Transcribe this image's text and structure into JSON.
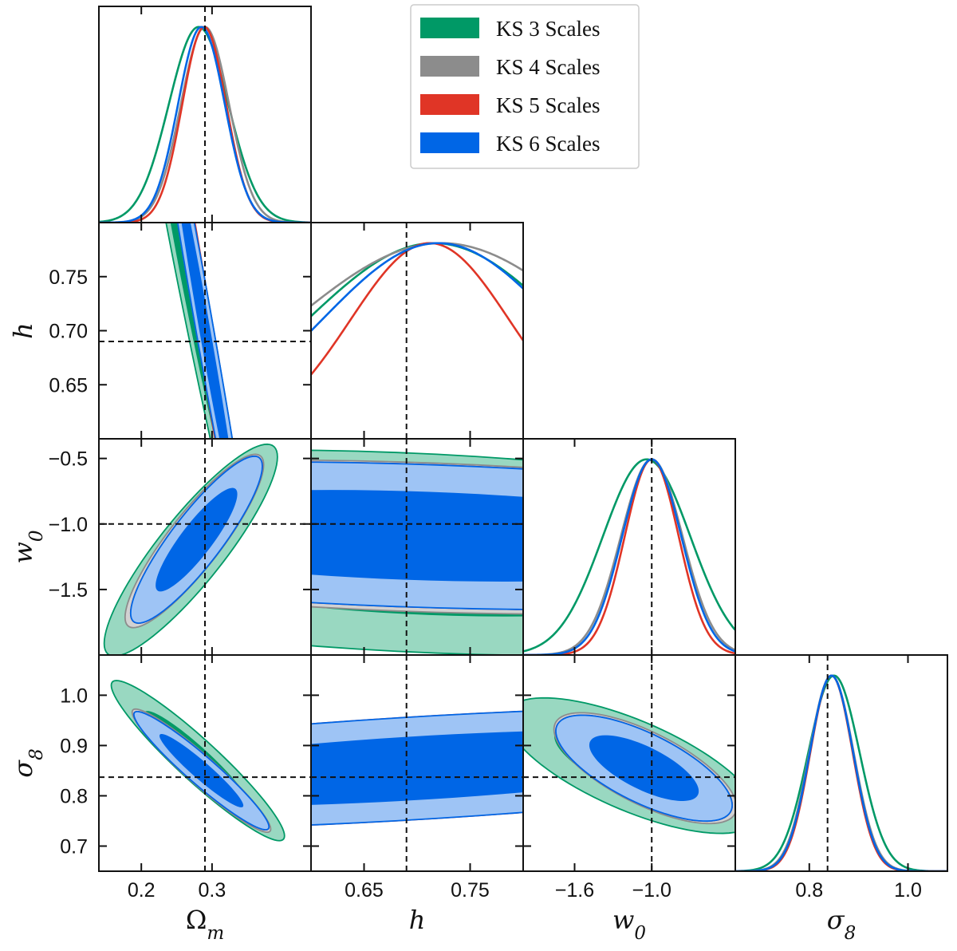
{
  "chart_data": {
    "type": "corner",
    "parameters": [
      {
        "key": "Om",
        "label": "Ω",
        "subscript": "m",
        "fiducial": 0.29,
        "range": [
          0.14,
          0.44
        ],
        "ticks": [
          0.2,
          0.3
        ],
        "tick_labels": [
          "0.2",
          "0.3"
        ]
      },
      {
        "key": "h",
        "label": "h",
        "subscript": "",
        "fiducial": 0.69,
        "range": [
          0.6,
          0.8
        ],
        "ticks": [
          0.65,
          0.75
        ],
        "tick_labels": [
          "0.65",
          "0.75"
        ],
        "y_ticks": [
          0.65,
          0.7,
          0.75
        ],
        "y_tick_labels": [
          "0.65",
          "0.70",
          "0.75"
        ]
      },
      {
        "key": "w0",
        "label": "w",
        "subscript": "0",
        "fiducial": -1.0,
        "range": [
          -2.0,
          -0.35
        ],
        "ticks": [
          -1.6,
          -1.0
        ],
        "tick_labels": [
          "−1.6",
          "−1.0"
        ],
        "y_ticks": [
          -1.5,
          -1.0,
          -0.5
        ],
        "y_tick_labels": [
          "−1.5",
          "−1.0",
          "−0.5"
        ]
      },
      {
        "key": "s8",
        "label": "σ",
        "subscript": "8",
        "fiducial": 0.837,
        "range": [
          0.65,
          1.08
        ],
        "ticks": [
          0.8,
          1.0
        ],
        "tick_labels": [
          "0.8",
          "1.0"
        ],
        "y_ticks": [
          0.7,
          0.8,
          0.9,
          1.0
        ],
        "y_tick_labels": [
          "0.7",
          "0.8",
          "0.9",
          "1.0"
        ]
      }
    ],
    "series": [
      {
        "name": "KS 3 Scales",
        "color": "#009966",
        "fill68": "#009966",
        "fill95": "#99d8c1",
        "filled": true,
        "marginals": {
          "Om": {
            "mean": 0.281,
            "sigma": 0.042
          },
          "h": {
            "mean": 0.716,
            "sigma": 0.12
          },
          "w0": {
            "mean": -1.04,
            "sigma": 0.34
          },
          "s8": {
            "mean": 0.85,
            "sigma": 0.052
          }
        },
        "ellipses": {
          "Om|h": {
            "cx": 0.28,
            "cy": 0.7,
            "sx": 0.035,
            "sy": 0.11,
            "rho": -0.985
          },
          "Om|w0": {
            "cx": 0.27,
            "cy": -1.2,
            "sx": 0.05,
            "sy": 0.33,
            "rho": 0.88
          },
          "h|w0": {
            "cx": 0.7,
            "cy": -1.22,
            "sx": 0.22,
            "sy": 0.32,
            "rho": -0.25
          },
          "Om|s8": {
            "cx": 0.28,
            "cy": 0.87,
            "sx": 0.05,
            "sy": 0.065,
            "rho": -0.94
          },
          "h|s8": {
            "cx": 0.7,
            "cy": 0.855,
            "sx": 0.22,
            "sy": 0.045,
            "rho": 0.55
          },
          "w0|s8": {
            "cx": -1.15,
            "cy": 0.86,
            "sx": 0.4,
            "sy": 0.055,
            "rho": -0.7
          }
        }
      },
      {
        "name": "KS 4 Scales",
        "color": "#8c8c8c",
        "fill68": "#8c8c8c",
        "fill95": "#d2d2d2",
        "filled": true,
        "marginals": {
          "Om": {
            "mean": 0.29,
            "sigma": 0.034
          },
          "h": {
            "mean": 0.723,
            "sigma": 0.14
          },
          "w0": {
            "mean": -1.0,
            "sigma": 0.24
          },
          "s8": {
            "mean": 0.845,
            "sigma": 0.045
          }
        },
        "ellipses": {
          "Om|h": {
            "cx": 0.29,
            "cy": 0.7,
            "sx": 0.03,
            "sy": 0.11,
            "rho": -0.985
          },
          "Om|w0": {
            "cx": 0.275,
            "cy": -1.13,
            "sx": 0.04,
            "sy": 0.27,
            "rho": 0.88
          },
          "h|w0": {
            "cx": 0.7,
            "cy": -1.1,
            "sx": 0.22,
            "sy": 0.24,
            "rho": -0.25
          },
          "Om|s8": {
            "cx": 0.285,
            "cy": 0.85,
            "sx": 0.04,
            "sy": 0.05,
            "rho": -0.95
          },
          "h|s8": {
            "cx": 0.7,
            "cy": 0.855,
            "sx": 0.22,
            "sy": 0.038,
            "rho": 0.55
          },
          "w0|s8": {
            "cx": -1.05,
            "cy": 0.855,
            "sx": 0.29,
            "sy": 0.045,
            "rho": -0.7
          }
        }
      },
      {
        "name": "KS 5 Scales",
        "color": "#e03526",
        "fill68": "#e03526",
        "fill95": "#f4aea8",
        "filled": true,
        "marginals": {
          "Om": {
            "mean": 0.289,
            "sigma": 0.031
          },
          "h": {
            "mean": 0.712,
            "sigma": 0.075
          },
          "w0": {
            "mean": -1.0,
            "sigma": 0.21
          },
          "s8": {
            "mean": 0.845,
            "sigma": 0.043
          }
        },
        "ellipses": {
          "Om|h": {
            "cx": 0.29,
            "cy": 0.7,
            "sx": 0.028,
            "sy": 0.11,
            "rho": -0.985
          },
          "Om|w0": {
            "cx": 0.278,
            "cy": -1.12,
            "sx": 0.038,
            "sy": 0.26,
            "rho": 0.88
          },
          "h|w0": {
            "cx": 0.7,
            "cy": -1.09,
            "sx": 0.22,
            "sy": 0.23,
            "rho": -0.25
          },
          "Om|s8": {
            "cx": 0.285,
            "cy": 0.85,
            "sx": 0.039,
            "sy": 0.048,
            "rho": -0.95
          },
          "h|s8": {
            "cx": 0.7,
            "cy": 0.855,
            "sx": 0.22,
            "sy": 0.05,
            "rho": 0.55
          },
          "w0|s8": {
            "cx": -1.06,
            "cy": 0.855,
            "sx": 0.28,
            "sy": 0.043,
            "rho": -0.7
          }
        }
      },
      {
        "name": "KS 6 Scales",
        "color": "#0066e6",
        "fill68": "#0066e6",
        "fill95": "#9ec4f5",
        "filled": true,
        "marginals": {
          "Om": {
            "mean": 0.285,
            "sigma": 0.033
          },
          "h": {
            "mean": 0.72,
            "sigma": 0.11
          },
          "w0": {
            "mean": -1.0,
            "sigma": 0.23
          },
          "s8": {
            "mean": 0.845,
            "sigma": 0.044
          }
        },
        "ellipses": {
          "Om|h": {
            "cx": 0.29,
            "cy": 0.7,
            "sx": 0.03,
            "sy": 0.11,
            "rho": -0.985
          },
          "Om|w0": {
            "cx": 0.278,
            "cy": -1.12,
            "sx": 0.038,
            "sy": 0.26,
            "rho": 0.88
          },
          "h|w0": {
            "cx": 0.7,
            "cy": -1.09,
            "sx": 0.22,
            "sy": 0.23,
            "rho": -0.25
          },
          "Om|s8": {
            "cx": 0.285,
            "cy": 0.85,
            "sx": 0.039,
            "sy": 0.048,
            "rho": -0.95
          },
          "h|s8": {
            "cx": 0.7,
            "cy": 0.855,
            "sx": 0.22,
            "sy": 0.05,
            "rho": 0.55
          },
          "w0|s8": {
            "cx": -1.06,
            "cy": 0.855,
            "sx": 0.28,
            "sy": 0.043,
            "rho": -0.7
          }
        }
      }
    ],
    "legend": {
      "position": "top-right",
      "entries": [
        "KS 3 Scales",
        "KS 4 Scales",
        "KS 5 Scales",
        "KS 6 Scales"
      ]
    },
    "contour_levels": [
      "68%",
      "95%"
    ],
    "grid": false
  }
}
